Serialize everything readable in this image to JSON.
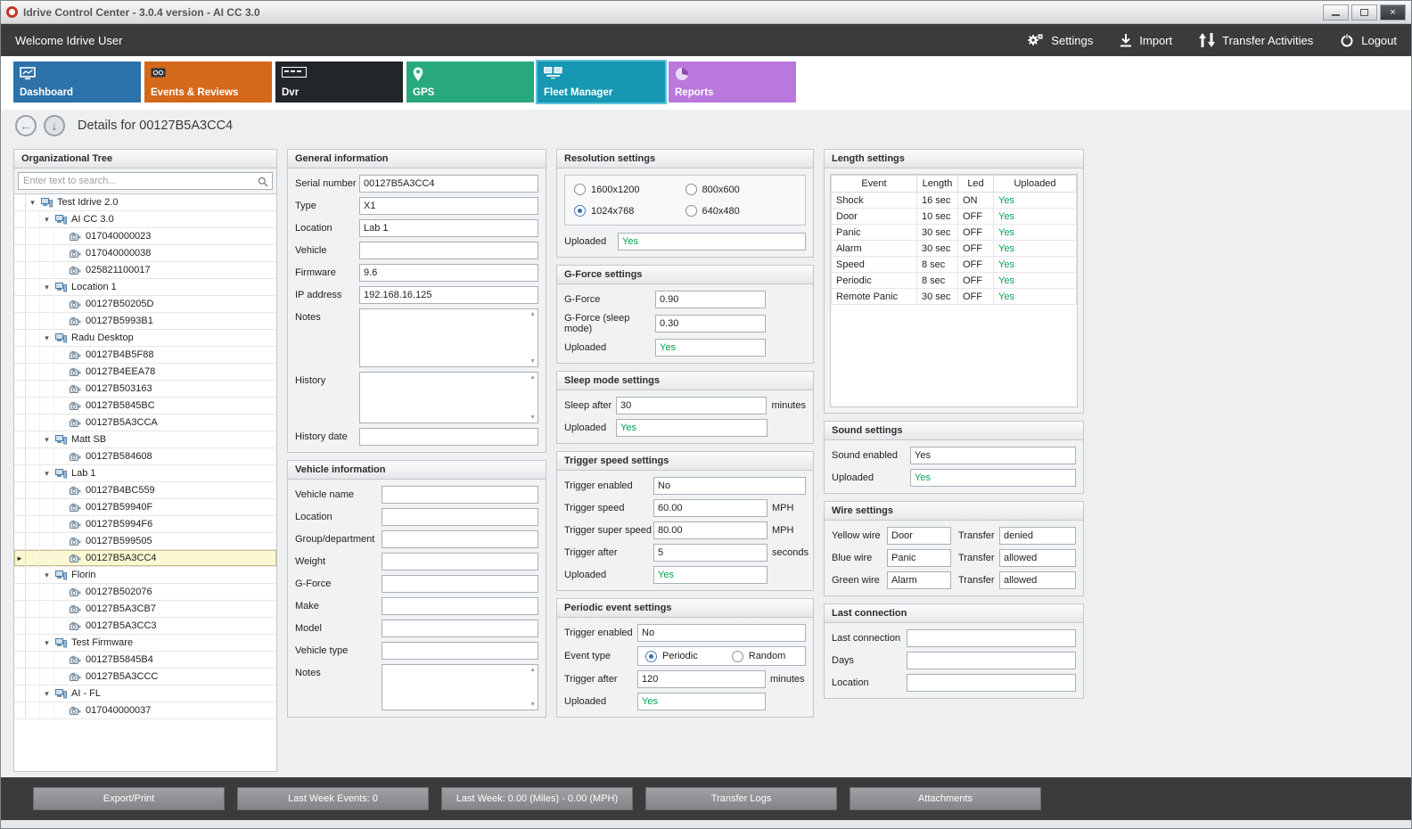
{
  "window": {
    "title": "Idrive Control Center - 3.0.4 version - AI CC 3.0"
  },
  "topbar": {
    "welcome": "Welcome Idrive User",
    "actions": [
      {
        "label": "Settings",
        "icon": "gears-icon"
      },
      {
        "label": "Import",
        "icon": "import-icon"
      },
      {
        "label": "Transfer Activities",
        "icon": "transfer-arrows-icon"
      },
      {
        "label": "Logout",
        "icon": "power-icon"
      }
    ]
  },
  "tabs": [
    {
      "label": "Dashboard",
      "color": "#2d72a9",
      "icon": "dashboard-icon",
      "selected": false
    },
    {
      "label": "Events & Reviews",
      "color": "#d4691c",
      "icon": "events-icon",
      "selected": false
    },
    {
      "label": "Dvr",
      "color": "#22262b",
      "icon": "dvr-icon",
      "selected": false
    },
    {
      "label": "GPS",
      "color": "#28a87d",
      "icon": "gps-pin-icon",
      "selected": false
    },
    {
      "label": "Fleet Manager",
      "color": "#1697b2",
      "icon": "fleet-icon",
      "selected": true
    },
    {
      "label": "Reports",
      "color": "#ba77dc",
      "icon": "reports-pie-icon",
      "selected": false
    }
  ],
  "details_header": {
    "title": "Details for 00127B5A3CC4"
  },
  "org_tree": {
    "title": "Organizational Tree",
    "search_placeholder": "Enter text to search...",
    "items": [
      {
        "label": "Test Idrive 2.0",
        "level": 0,
        "kind": "group",
        "expanded": true,
        "selected": false
      },
      {
        "label": "AI CC 3.0",
        "level": 1,
        "kind": "group",
        "expanded": true,
        "selected": false
      },
      {
        "label": "017040000023",
        "level": 2,
        "kind": "device",
        "selected": false
      },
      {
        "label": "017040000038",
        "level": 2,
        "kind": "device",
        "selected": false
      },
      {
        "label": "025821100017",
        "level": 2,
        "kind": "device",
        "selected": false
      },
      {
        "label": "Location 1",
        "level": 1,
        "kind": "group",
        "expanded": true,
        "selected": false
      },
      {
        "label": "00127B50205D",
        "level": 2,
        "kind": "device",
        "selected": false
      },
      {
        "label": "00127B5993B1",
        "level": 2,
        "kind": "device",
        "selected": false
      },
      {
        "label": "Radu Desktop",
        "level": 1,
        "kind": "group",
        "expanded": true,
        "selected": false
      },
      {
        "label": "00127B4B5F88",
        "level": 2,
        "kind": "device",
        "selected": false
      },
      {
        "label": "00127B4EEA78",
        "level": 2,
        "kind": "device",
        "selected": false
      },
      {
        "label": "00127B503163",
        "level": 2,
        "kind": "device",
        "selected": false
      },
      {
        "label": "00127B5845BC",
        "level": 2,
        "kind": "device",
        "selected": false
      },
      {
        "label": "00127B5A3CCA",
        "level": 2,
        "kind": "device",
        "selected": false
      },
      {
        "label": "Matt SB",
        "level": 1,
        "kind": "group",
        "expanded": true,
        "selected": false
      },
      {
        "label": "00127B584608",
        "level": 2,
        "kind": "device",
        "selected": false
      },
      {
        "label": "Lab 1",
        "level": 1,
        "kind": "group",
        "expanded": true,
        "selected": false
      },
      {
        "label": "00127B4BC559",
        "level": 2,
        "kind": "device",
        "selected": false
      },
      {
        "label": "00127B59940F",
        "level": 2,
        "kind": "device",
        "selected": false
      },
      {
        "label": "00127B5994F6",
        "level": 2,
        "kind": "device",
        "selected": false
      },
      {
        "label": "00127B599505",
        "level": 2,
        "kind": "device",
        "selected": false
      },
      {
        "label": "00127B5A3CC4",
        "level": 2,
        "kind": "device",
        "selected": true
      },
      {
        "label": "Florin",
        "level": 1,
        "kind": "group",
        "expanded": true,
        "selected": false
      },
      {
        "label": "00127B502076",
        "level": 2,
        "kind": "device",
        "selected": false
      },
      {
        "label": "00127B5A3CB7",
        "level": 2,
        "kind": "device",
        "selected": false
      },
      {
        "label": "00127B5A3CC3",
        "level": 2,
        "kind": "device",
        "selected": false
      },
      {
        "label": "Test Firmware",
        "level": 1,
        "kind": "group",
        "expanded": true,
        "selected": false
      },
      {
        "label": "00127B5845B4",
        "level": 2,
        "kind": "device",
        "selected": false
      },
      {
        "label": "00127B5A3CCC",
        "level": 2,
        "kind": "device",
        "selected": false
      },
      {
        "label": "AI - FL",
        "level": 1,
        "kind": "group",
        "expanded": true,
        "selected": false
      },
      {
        "label": "017040000037",
        "level": 2,
        "kind": "device",
        "selected": false
      }
    ]
  },
  "general_info": {
    "title": "General information",
    "serial_label": "Serial number",
    "serial": "00127B5A3CC4",
    "type_label": "Type",
    "type": "X1",
    "location_label": "Location",
    "location": "Lab 1",
    "vehicle_label": "Vehicle",
    "vehicle": "",
    "firmware_label": "Firmware",
    "firmware": "9.6",
    "ip_label": "IP address",
    "ip": "192.168.16.125",
    "notes_label": "Notes",
    "notes": "",
    "history_label": "History",
    "history": "",
    "history_date_label": "History date",
    "history_date": ""
  },
  "vehicle_info": {
    "title": "Vehicle information",
    "vehicle_name_label": "Vehicle name",
    "vehicle_name": "",
    "location_label": "Location",
    "location": "",
    "group_label": "Group/department",
    "group": "",
    "weight_label": "Weight",
    "weight": "",
    "gforce_label": "G-Force",
    "gforce": "",
    "make_label": "Make",
    "make": "",
    "model_label": "Model",
    "model": "",
    "vehicle_type_label": "Vehicle type",
    "vehicle_type": "",
    "notes_label": "Notes",
    "notes": ""
  },
  "resolution_settings": {
    "title": "Resolution settings",
    "options": [
      {
        "label": "1600x1200",
        "selected": false
      },
      {
        "label": "800x600",
        "selected": false
      },
      {
        "label": "1024x768",
        "selected": true
      },
      {
        "label": "640x480",
        "selected": false
      }
    ],
    "uploaded_label": "Uploaded",
    "uploaded": "Yes"
  },
  "gforce_settings": {
    "title": "G-Force settings",
    "gforce_label": "G-Force",
    "gforce": "0.90",
    "gforce_sleep_label": "G-Force (sleep mode)",
    "gforce_sleep": "0.30",
    "uploaded_label": "Uploaded",
    "uploaded": "Yes"
  },
  "sleep_settings": {
    "title": "Sleep mode settings",
    "sleep_after_label": "Sleep after",
    "sleep_after": "30",
    "sleep_after_suffix": "minutes",
    "uploaded_label": "Uploaded",
    "uploaded": "Yes"
  },
  "trigger_speed_settings": {
    "title": "Trigger speed settings",
    "enabled_label": "Trigger enabled",
    "enabled": "No",
    "speed_label": "Trigger speed",
    "speed": "60.00",
    "speed_suffix": "MPH",
    "super_speed_label": "Trigger super speed",
    "super_speed": "80.00",
    "super_speed_suffix": "MPH",
    "after_label": "Trigger after",
    "after": "5",
    "after_suffix": "seconds",
    "uploaded_label": "Uploaded",
    "uploaded": "Yes"
  },
  "periodic_settings": {
    "title": "Periodic event settings",
    "enabled_label": "Trigger enabled",
    "enabled": "No",
    "event_type_label": "Event type",
    "event_type_options": [
      {
        "label": "Periodic",
        "selected": true
      },
      {
        "label": "Random",
        "selected": false
      }
    ],
    "after_label": "Trigger after",
    "after": "120",
    "after_suffix": "minutes",
    "uploaded_label": "Uploaded",
    "uploaded": "Yes"
  },
  "length_settings": {
    "title": "Length settings",
    "columns": [
      "Event",
      "Length",
      "Led",
      "Uploaded"
    ],
    "rows": [
      [
        "Shock",
        "16 sec",
        "ON",
        "Yes"
      ],
      [
        "Door",
        "10 sec",
        "OFF",
        "Yes"
      ],
      [
        "Panic",
        "30 sec",
        "OFF",
        "Yes"
      ],
      [
        "Alarm",
        "30 sec",
        "OFF",
        "Yes"
      ],
      [
        "Speed",
        "8 sec",
        "OFF",
        "Yes"
      ],
      [
        "Periodic",
        "8 sec",
        "OFF",
        "Yes"
      ],
      [
        "Remote Panic",
        "30 sec",
        "OFF",
        "Yes"
      ]
    ]
  },
  "sound_settings": {
    "title": "Sound settings",
    "enabled_label": "Sound enabled",
    "enabled": "Yes",
    "uploaded_label": "Uploaded",
    "uploaded": "Yes"
  },
  "wire_settings": {
    "title": "Wire settings",
    "rows": [
      {
        "wire_label": "Yellow wire",
        "wire_value": "Door",
        "transfer_label": "Transfer",
        "transfer_value": "denied"
      },
      {
        "wire_label": "Blue wire",
        "wire_value": "Panic",
        "transfer_label": "Transfer",
        "transfer_value": "allowed"
      },
      {
        "wire_label": "Green wire",
        "wire_value": "Alarm",
        "transfer_label": "Transfer",
        "transfer_value": "allowed"
      }
    ]
  },
  "last_connection": {
    "title": "Last connection",
    "last_label": "Last connection",
    "last": "",
    "days_label": "Days",
    "days": "",
    "location_label": "Location",
    "location": ""
  },
  "bottom_bar": {
    "buttons": [
      "Export/Print",
      "Last Week Events: 0",
      "Last Week: 0.00 (Miles) - 0.00 (MPH)",
      "Transfer Logs",
      "Attachments"
    ]
  },
  "colors": {
    "yes_green": "#00a44e",
    "selected_row_bg": "#fbf8d3",
    "selected_tab_outline": "#5ec3dc"
  }
}
